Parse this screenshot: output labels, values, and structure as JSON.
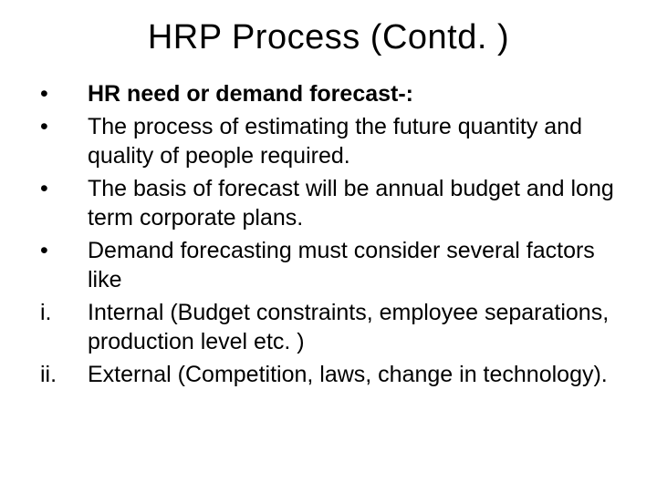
{
  "title": "HRP Process (Contd. )",
  "items": [
    {
      "marker": "•",
      "text": "HR need or demand forecast-:",
      "bold": true
    },
    {
      "marker": "•",
      "text": "The process of estimating the future quantity and quality of people required.",
      "bold": false
    },
    {
      "marker": "•",
      "text": "The basis of forecast will be annual budget and long term corporate plans.",
      "bold": false
    },
    {
      "marker": "•",
      "text": "Demand forecasting must consider several factors like",
      "bold": false
    },
    {
      "marker": "i.",
      "text": "Internal (Budget constraints, employee separations, production level etc. )",
      "bold": false
    },
    {
      "marker": "ii.",
      "text": "External (Competition, laws, change in technology).",
      "bold": false
    }
  ]
}
